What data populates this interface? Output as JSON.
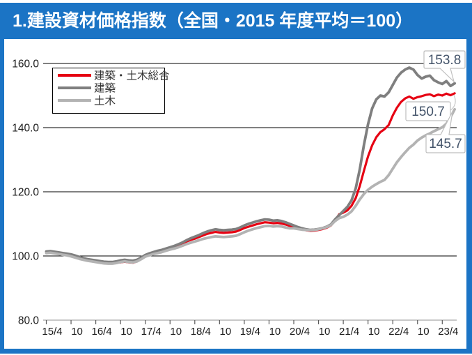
{
  "title": "1.建設資材価格指数（全国・2015 年度平均＝100）",
  "colors": {
    "frame_blue": "#1b74c5",
    "header_text": "#ffffff",
    "gridline": "#000000",
    "axis_line": "#a6a6a6",
    "tick_mark": "#595959",
    "axis_text": "#1a1a1a",
    "legend_text": "#333333",
    "callout_text": "#44546a",
    "callout_border": "#bfbfbf"
  },
  "chart_data": {
    "type": "line",
    "title": "建設資材価格指数（全国・2015年度平均＝100）",
    "frequency": "monthly",
    "x_start": "2015/4",
    "x_end": "2023/7",
    "ylim": [
      80,
      160
    ],
    "grid": "horizontal",
    "legend_position": "top-left-inside",
    "y_ticks": [
      {
        "value": 160,
        "label": "160.0"
      },
      {
        "value": 140,
        "label": "140.0"
      },
      {
        "value": 120,
        "label": "120.0"
      },
      {
        "value": 100,
        "label": "100.0"
      },
      {
        "value": 80,
        "label": "80.0"
      }
    ],
    "x_tick_labels": [
      "15/4",
      "10",
      "16/4",
      "10",
      "17/4",
      "10",
      "18/4",
      "10",
      "19/4",
      "10",
      "20/4",
      "10",
      "21/4",
      "10",
      "22/4",
      "10",
      "23/4"
    ],
    "series": [
      {
        "id": "sogo",
        "name": "建築・土木総合",
        "color": "#e60012",
        "end_label": "150.7",
        "values": [
          101.2,
          101.3,
          101.1,
          100.9,
          100.7,
          100.5,
          100.2,
          99.8,
          99.4,
          99.1,
          98.7,
          98.4,
          98.2,
          98.0,
          97.8,
          97.7,
          97.7,
          97.9,
          98.0,
          98.2,
          98.0,
          97.9,
          98.3,
          99.2,
          100.1,
          100.6,
          101.0,
          101.4,
          101.7,
          102.0,
          102.4,
          102.8,
          103.3,
          103.9,
          104.5,
          105.0,
          105.4,
          105.9,
          106.4,
          106.9,
          107.2,
          107.5,
          107.3,
          107.2,
          107.3,
          107.4,
          107.6,
          108.1,
          108.7,
          109.1,
          109.5,
          109.9,
          110.2,
          110.5,
          110.4,
          110.2,
          110.3,
          110.1,
          109.8,
          109.4,
          109.1,
          108.7,
          108.3,
          108.0,
          107.8,
          107.9,
          108.1,
          108.4,
          108.8,
          109.5,
          111.0,
          113.0,
          113.5,
          114.2,
          115.6,
          118.0,
          121.8,
          126.5,
          131.0,
          134.5,
          137.0,
          138.6,
          139.5,
          140.8,
          143.8,
          146.2,
          148.0,
          149.1,
          149.7,
          149.0,
          149.5,
          149.8,
          150.2,
          150.4,
          149.8,
          150.3,
          150.0,
          150.6,
          150.1,
          150.7
        ]
      },
      {
        "id": "kenchiku",
        "name": "建築",
        "color": "#7f7f7f",
        "end_label": "153.8",
        "values": [
          101.4,
          101.5,
          101.3,
          101.1,
          100.9,
          100.7,
          100.5,
          100.1,
          99.7,
          99.3,
          99.0,
          98.8,
          98.6,
          98.4,
          98.2,
          98.1,
          98.1,
          98.3,
          98.6,
          98.8,
          98.6,
          98.5,
          98.8,
          99.5,
          100.3,
          100.8,
          101.2,
          101.6,
          101.9,
          102.3,
          102.7,
          103.1,
          103.6,
          104.2,
          104.9,
          105.5,
          106.0,
          106.5,
          107.1,
          107.6,
          108.0,
          108.3,
          108.1,
          108.0,
          108.1,
          108.2,
          108.4,
          108.9,
          109.5,
          110.0,
          110.4,
          110.8,
          111.1,
          111.4,
          111.3,
          111.0,
          111.1,
          110.9,
          110.5,
          110.0,
          109.5,
          109.0,
          108.6,
          108.3,
          108.1,
          108.2,
          108.4,
          108.7,
          109.1,
          109.8,
          111.4,
          112.7,
          114.0,
          115.3,
          117.3,
          121.0,
          127.0,
          134.5,
          141.0,
          146.0,
          148.8,
          150.0,
          149.7,
          151.0,
          153.3,
          155.6,
          157.1,
          158.1,
          158.7,
          158.1,
          156.4,
          155.3,
          155.9,
          156.2,
          154.8,
          154.1,
          153.6,
          154.5,
          153.0,
          153.8
        ]
      },
      {
        "id": "doboku",
        "name": "土木",
        "color": "#b3b3b3",
        "end_label": "145.7",
        "values": [
          100.9,
          101.0,
          100.8,
          100.6,
          100.4,
          100.2,
          99.9,
          99.5,
          99.1,
          98.8,
          98.5,
          98.3,
          98.1,
          97.9,
          97.7,
          97.6,
          97.6,
          97.8,
          98.1,
          98.3,
          98.1,
          98.0,
          98.3,
          99.0,
          99.8,
          100.2,
          100.6,
          100.9,
          101.2,
          101.6,
          102.0,
          102.3,
          102.7,
          103.2,
          103.7,
          104.1,
          104.5,
          104.9,
          105.3,
          105.6,
          105.9,
          106.1,
          106.0,
          105.9,
          106.0,
          106.1,
          106.3,
          106.8,
          107.4,
          107.9,
          108.3,
          108.7,
          109.0,
          109.3,
          109.4,
          109.2,
          109.3,
          109.2,
          108.9,
          108.6,
          108.6,
          108.4,
          108.2,
          108.1,
          108.0,
          108.1,
          108.3,
          108.6,
          109.0,
          109.6,
          110.9,
          111.8,
          112.2,
          112.9,
          113.9,
          115.6,
          117.6,
          119.3,
          120.6,
          121.6,
          122.4,
          123.1,
          123.7,
          125.2,
          127.2,
          129.2,
          130.8,
          132.3,
          133.7,
          134.7,
          136.0,
          136.9,
          137.6,
          138.2,
          138.9,
          139.5,
          140.1,
          141.2,
          143.2,
          145.7
        ]
      }
    ]
  }
}
